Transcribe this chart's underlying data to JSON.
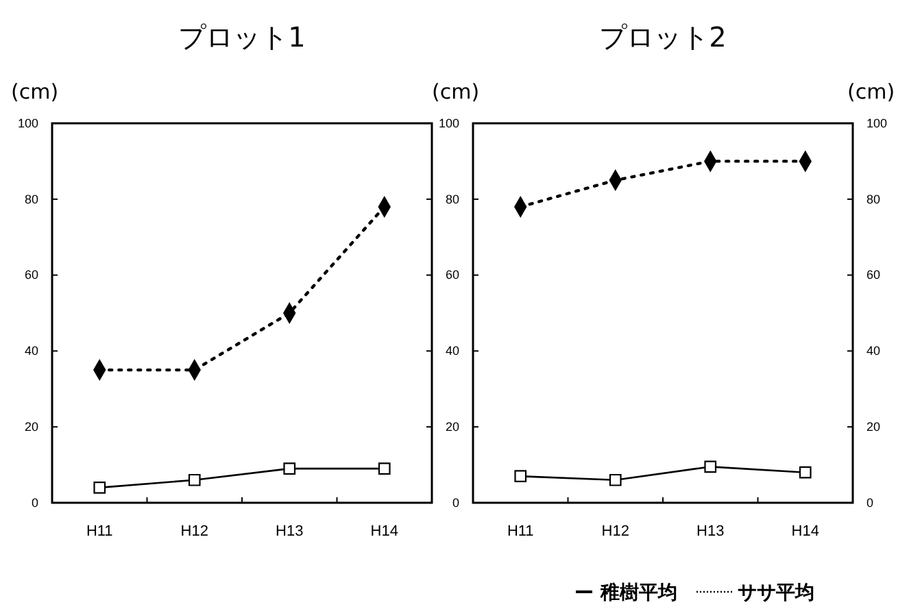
{
  "chart_data": [
    {
      "type": "line",
      "title": "プロット1",
      "ylabel": "(cm)",
      "categories": [
        "H11",
        "H12",
        "H13",
        "H14"
      ],
      "ylim": [
        0,
        100
      ],
      "yticks": [
        0,
        20,
        40,
        60,
        80,
        100
      ],
      "grid": false,
      "series": [
        {
          "color": "#000000",
          "marker": "square",
          "line_style": "solid",
          "values": [
            4,
            6,
            9,
            9
          ]
        },
        {
          "color": "#000000",
          "marker": "diamond",
          "line_style": "dotted",
          "values": [
            35,
            35,
            50,
            78
          ]
        }
      ]
    },
    {
      "type": "line",
      "title": "プロット2",
      "ylabel": "(cm)",
      "y2label": "(cm)",
      "categories": [
        "H11",
        "H12",
        "H13",
        "H14"
      ],
      "ylim": [
        0,
        100
      ],
      "yticks": [
        0,
        20,
        40,
        60,
        80,
        100
      ],
      "y2lim": [
        0,
        100
      ],
      "y2ticks": [
        0,
        20,
        40,
        60,
        80,
        100
      ],
      "grid": false,
      "legend": "bottom right",
      "series": [
        {
          "name": "稚樹平均",
          "color": "#000000",
          "marker": "square",
          "line_style": "solid",
          "values": [
            7,
            6,
            9.5,
            8
          ]
        },
        {
          "name": "ササ平均",
          "color": "#000000",
          "marker": "diamond",
          "line_style": "dotted",
          "values": [
            78,
            85,
            90,
            90
          ]
        }
      ]
    }
  ]
}
